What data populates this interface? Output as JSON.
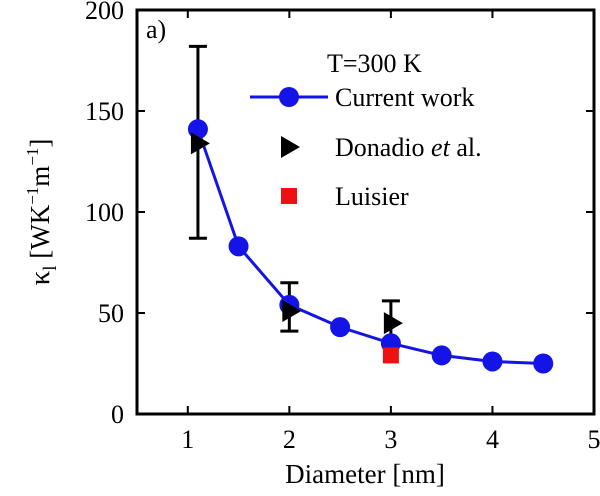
{
  "chart_data": {
    "type": "scatter",
    "panel_label": "a)",
    "annotation": "T=300 K",
    "xlabel": "Diameter [nm]",
    "ylabel": {
      "symbol": "κ",
      "subscript": "l",
      "unit_open": " [WK",
      "unit_exp1": "−1",
      "unit_mid": "m",
      "unit_exp2": "−1",
      "unit_close": "]"
    },
    "xlim": [
      0.5,
      5
    ],
    "ylim": [
      0,
      200
    ],
    "xticks": [
      1,
      2,
      3,
      4,
      5
    ],
    "yticks": [
      0,
      50,
      100,
      150,
      200
    ],
    "grid": false,
    "legend_position": "top-right",
    "series": [
      {
        "name": "Current work",
        "marker": "circle",
        "line": true,
        "color": "#1414e6",
        "x": [
          1.1,
          1.5,
          2.0,
          2.5,
          3.0,
          3.5,
          4.0,
          4.5
        ],
        "y": [
          141,
          83,
          54,
          43,
          35,
          29,
          26,
          25
        ]
      },
      {
        "name_prefix": "Donadio ",
        "name_italic": "et",
        "name_suffix": " al.",
        "marker": "triangle-right",
        "line": false,
        "color": "#000000",
        "x": [
          1.1,
          2.0,
          3.0
        ],
        "y": [
          134,
          51,
          45
        ],
        "yerr_low": [
          87,
          41,
          35
        ],
        "yerr_high": [
          182,
          65,
          56
        ]
      },
      {
        "name": "Luisier",
        "marker": "square",
        "line": false,
        "color": "#ee1111",
        "x": [
          3.0
        ],
        "y": [
          29
        ]
      }
    ]
  }
}
